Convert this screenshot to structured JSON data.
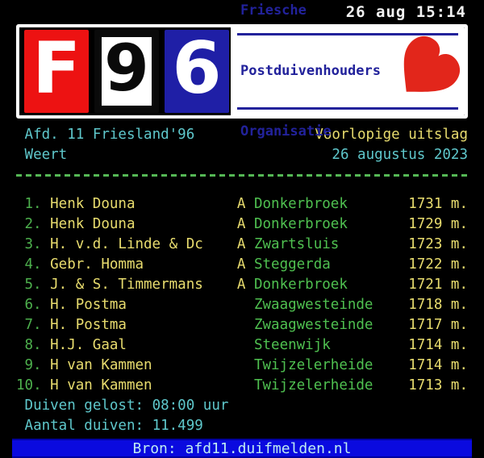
{
  "clock": "26 aug 15:14",
  "logo": {
    "tiles": [
      {
        "letter": "F",
        "bg": "#ED1212",
        "fg": "#FFFFFF"
      },
      {
        "letter": "9",
        "bg": "#FFFFFF",
        "fg": "#0A0A0A"
      },
      {
        "letter": "6",
        "bg": "#1F1FA6",
        "fg": "#FFFFFF"
      }
    ],
    "org_lines": [
      "Friesche",
      "Postduivenhouders",
      "Organisatie"
    ],
    "org_text_color": "#22229B",
    "heart_color": "#E2261B"
  },
  "meta": {
    "afdeling": "Afd. 11 Friesland'96",
    "result_type": "Voorlopige uitslag",
    "race_location": "Weert",
    "race_date": "26 augustus 2023"
  },
  "results": [
    {
      "rank": "1.",
      "name": "Henk Douna",
      "prefix": "A",
      "location": "Donkerbroek",
      "distance": "1731 m."
    },
    {
      "rank": "2.",
      "name": "Henk Douna",
      "prefix": "A",
      "location": "Donkerbroek",
      "distance": "1729 m."
    },
    {
      "rank": "3.",
      "name": "H. v.d. Linde & Dc",
      "prefix": "A",
      "location": "Zwartsluis",
      "distance": "1723 m."
    },
    {
      "rank": "4.",
      "name": "Gebr. Homma",
      "prefix": "A",
      "location": "Steggerda",
      "distance": "1722 m."
    },
    {
      "rank": "5.",
      "name": "J. & S. Timmermans",
      "prefix": "A",
      "location": "Donkerbroek",
      "distance": "1721 m."
    },
    {
      "rank": "6.",
      "name": "H. Postma",
      "prefix": "",
      "location": "Zwaagwesteinde",
      "distance": "1718 m."
    },
    {
      "rank": "7.",
      "name": "H. Postma",
      "prefix": "",
      "location": "Zwaagwesteinde",
      "distance": "1717 m."
    },
    {
      "rank": "8.",
      "name": "H.J. Gaal",
      "prefix": "",
      "location": "Steenwijk",
      "distance": "1714 m."
    },
    {
      "rank": "9.",
      "name": "H van Kammen",
      "prefix": "",
      "location": "Twijzelerheide",
      "distance": "1714 m."
    },
    {
      "rank": "10.",
      "name": "H van Kammen",
      "prefix": "",
      "location": "Twijzelerheide",
      "distance": "1713 m."
    }
  ],
  "footer": {
    "release_info": "Duiven gelost: 08:00 uur",
    "pigeon_count": "Aantal duiven: 11.499",
    "source": "Bron: afd11.duifmelden.nl"
  },
  "colors": {
    "background": "#000000",
    "cyan_text": "#5FC8CC",
    "yellow_text": "#E8DC6E",
    "green_text": "#4FC050",
    "white_text": "#F2F2F2",
    "dash_green": "#55B855",
    "source_bar_blue": "#0A0ADF",
    "source_bar_text": "#BFECF2"
  }
}
